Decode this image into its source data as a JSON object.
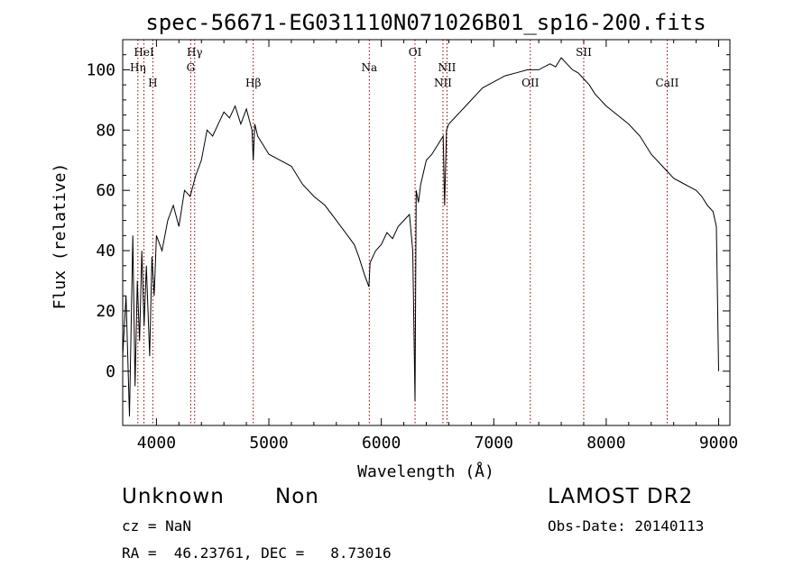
{
  "chart_data": {
    "type": "line",
    "title": "spec-56671-EG031110N071026B01_sp16-200.fits",
    "xlabel": "Wavelength (Å)",
    "ylabel": "Flux (relative)",
    "xlim": [
      3700,
      9100
    ],
    "ylim": [
      -18,
      110
    ],
    "x_ticks": [
      4000,
      5000,
      6000,
      7000,
      8000,
      9000
    ],
    "y_ticks": [
      0,
      20,
      40,
      60,
      80,
      100
    ],
    "grid": false,
    "series": [
      {
        "x": [
          3700,
          3730,
          3760,
          3790,
          3810,
          3830,
          3850,
          3870,
          3890,
          3910,
          3940,
          3960,
          3980,
          4000,
          4050,
          4100,
          4150,
          4200,
          4250,
          4300,
          4350,
          4400,
          4450,
          4500,
          4550,
          4600,
          4650,
          4700,
          4750,
          4800,
          4850,
          4861,
          4875,
          4900,
          4950,
          5000,
          5100,
          5200,
          5300,
          5400,
          5500,
          5600,
          5700,
          5760,
          5800,
          5850,
          5890,
          5900,
          5950,
          6000,
          6050,
          6100,
          6150,
          6200,
          6250,
          6280,
          6300,
          6310,
          6330,
          6350,
          6400,
          6450,
          6500,
          6550,
          6563,
          6580,
          6600,
          6650,
          6700,
          6750,
          6800,
          6850,
          6900,
          7000,
          7100,
          7200,
          7300,
          7400,
          7500,
          7550,
          7600,
          7650,
          7700,
          7750,
          7800,
          7850,
          7900,
          8000,
          8100,
          8200,
          8300,
          8400,
          8500,
          8600,
          8700,
          8800,
          8850,
          8900,
          8950,
          8980,
          9000
        ],
        "y": [
          5,
          25,
          -15,
          45,
          -5,
          30,
          10,
          40,
          15,
          35,
          5,
          38,
          25,
          45,
          40,
          50,
          55,
          48,
          60,
          58,
          65,
          70,
          80,
          78,
          82,
          86,
          84,
          88,
          82,
          87,
          80,
          70,
          82,
          78,
          75,
          72,
          70,
          68,
          62,
          58,
          55,
          50,
          45,
          42,
          38,
          32,
          28,
          36,
          40,
          42,
          46,
          44,
          48,
          50,
          52,
          40,
          -10,
          60,
          56,
          62,
          70,
          72,
          75,
          78,
          55,
          80,
          82,
          84,
          86,
          88,
          90,
          92,
          94,
          96,
          98,
          99,
          100,
          100,
          102,
          101,
          104,
          102,
          100,
          99,
          97,
          95,
          92,
          88,
          85,
          82,
          78,
          72,
          68,
          64,
          62,
          60,
          58,
          55,
          53,
          48,
          0
        ],
        "color": "#000000"
      }
    ],
    "annotations": [
      {
        "label": "HeI",
        "x": 3889,
        "row": 1
      },
      {
        "label": "Hη",
        "x": 3835,
        "row": 2
      },
      {
        "label": "H",
        "x": 3968,
        "row": 3
      },
      {
        "label": "Hγ",
        "x": 4340,
        "row": 1
      },
      {
        "label": "G",
        "x": 4305,
        "row": 2
      },
      {
        "label": "Hβ",
        "x": 4861,
        "row": 3
      },
      {
        "label": "Na",
        "x": 5893,
        "row": 2
      },
      {
        "label": "OI",
        "x": 6300,
        "row": 1
      },
      {
        "label": "NII",
        "x": 6584,
        "row": 2
      },
      {
        "label": "NII",
        "x": 6548,
        "row": 3
      },
      {
        "label": "OII",
        "x": 7325,
        "row": 3
      },
      {
        "label": "SII",
        "x": 7800,
        "row": 1
      },
      {
        "label": "CaII",
        "x": 8542,
        "row": 3
      }
    ]
  },
  "info": {
    "class": "Unknown",
    "subclass": "Non",
    "survey": "LAMOST DR2",
    "cz": "cz = NaN",
    "obs_date": "Obs-Date: 20140113",
    "radec": "RA =  46.23761, DEC =   8.73016"
  },
  "colors": {
    "line_marker": "#8b0000",
    "axis": "#000000"
  }
}
